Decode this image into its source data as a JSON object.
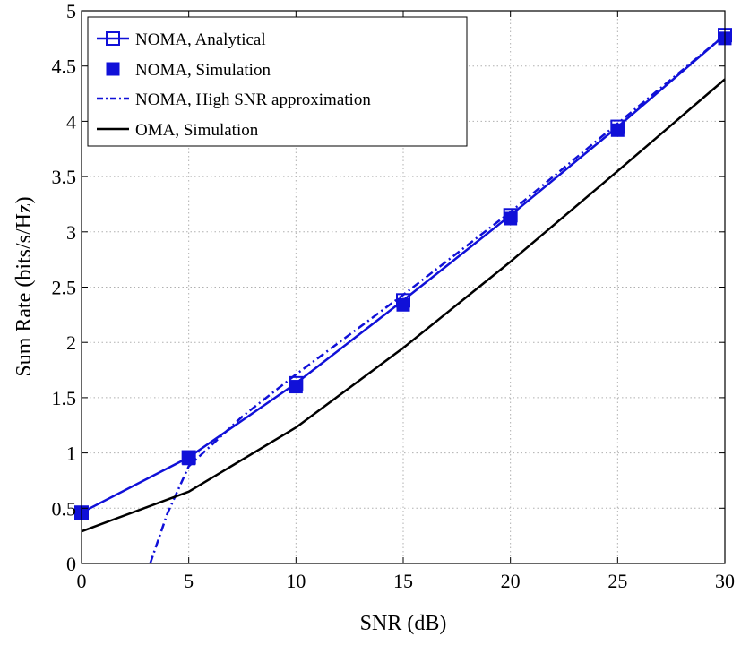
{
  "chart_data": {
    "type": "line",
    "title": "",
    "xlabel": "SNR (dB)",
    "ylabel": "Sum Rate (bits/s/Hz)",
    "xlim": [
      0,
      30
    ],
    "ylim": [
      0,
      5
    ],
    "xticks": [
      0,
      5,
      10,
      15,
      20,
      25,
      30
    ],
    "xtick_labels": [
      "0",
      "5",
      "10",
      "15",
      "20",
      "25",
      "30"
    ],
    "yticks": [
      0,
      0.5,
      1,
      1.5,
      2,
      2.5,
      3,
      3.5,
      4,
      4.5,
      5
    ],
    "ytick_labels": [
      "0",
      "0.5",
      "1",
      "1.5",
      "2",
      "2.5",
      "3",
      "3.5",
      "4",
      "4.5",
      "5"
    ],
    "grid": true,
    "legend_position": "top-left",
    "series": [
      {
        "name": "NOMA, Analytical",
        "color": "#1010d8",
        "line": "solid",
        "marker": "square-open",
        "x": [
          0,
          5,
          10,
          15,
          20,
          25,
          30
        ],
        "y": [
          0.46,
          0.96,
          1.63,
          2.38,
          3.15,
          3.95,
          4.78
        ]
      },
      {
        "name": "NOMA, Simulation",
        "color": "#1010d8",
        "line": "none",
        "marker": "square-filled",
        "x": [
          0,
          5,
          10,
          15,
          20,
          25,
          30
        ],
        "y": [
          0.45,
          0.95,
          1.6,
          2.34,
          3.12,
          3.92,
          4.75
        ]
      },
      {
        "name": "NOMA, High SNR approximation",
        "color": "#1010d8",
        "line": "dashdot",
        "marker": "none",
        "x": [
          3.2,
          4,
          5,
          7.5,
          10,
          15,
          20,
          25,
          30
        ],
        "y": [
          0,
          0.45,
          0.88,
          1.33,
          1.71,
          2.43,
          3.18,
          3.98,
          4.78
        ]
      },
      {
        "name": "OMA, Simulation",
        "color": "#000000",
        "line": "solid",
        "marker": "none",
        "x": [
          0,
          5,
          10,
          15,
          20,
          25,
          30
        ],
        "y": [
          0.29,
          0.65,
          1.23,
          1.95,
          2.73,
          3.55,
          4.38
        ]
      }
    ]
  }
}
